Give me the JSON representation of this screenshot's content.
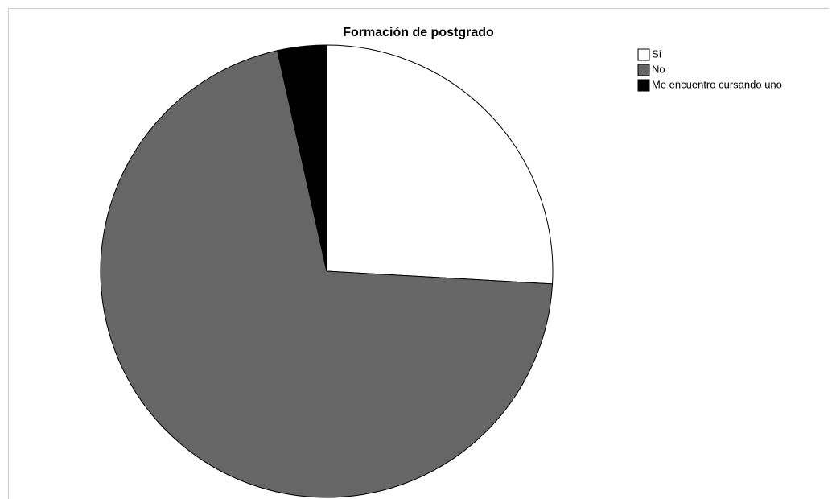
{
  "chart_data": {
    "type": "pie",
    "title": "Formación de postgrado",
    "categories": [
      "Sí",
      "No",
      "Me encuentro cursando uno"
    ],
    "values": [
      25.9,
      70.6,
      3.5
    ],
    "colors": [
      "#ffffff",
      "#666666",
      "#000000"
    ],
    "legend": "top-right"
  }
}
